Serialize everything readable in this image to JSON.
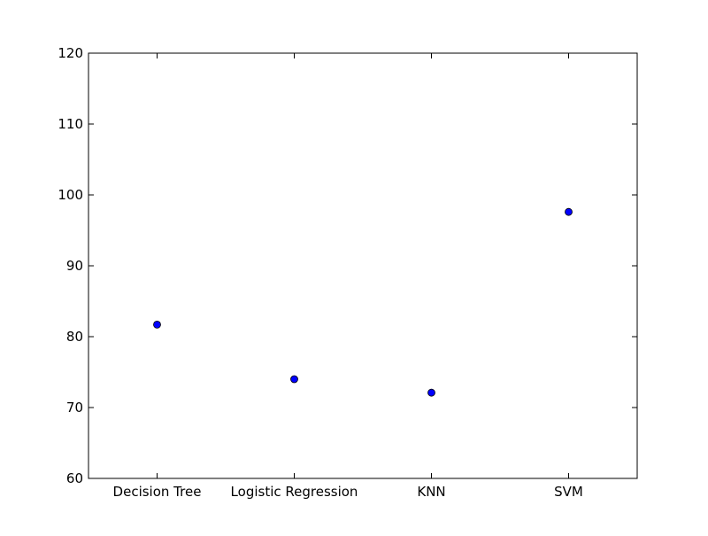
{
  "chart_data": {
    "type": "scatter",
    "title": "",
    "xlabel": "",
    "ylabel": "",
    "categories": [
      "Decision Tree",
      "Logistic Regression",
      "KNN",
      "SVM"
    ],
    "values": [
      81.7,
      74.0,
      72.1,
      97.6
    ],
    "ylim": [
      60,
      120
    ],
    "yticks": [
      "60",
      "70",
      "80",
      "90",
      "100",
      "110",
      "120"
    ],
    "grid": false,
    "legend": "none",
    "colors": {
      "marker_fill": "#0000ff",
      "marker_edge": "#000000",
      "axes": "#000000",
      "background": "#ffffff"
    }
  }
}
